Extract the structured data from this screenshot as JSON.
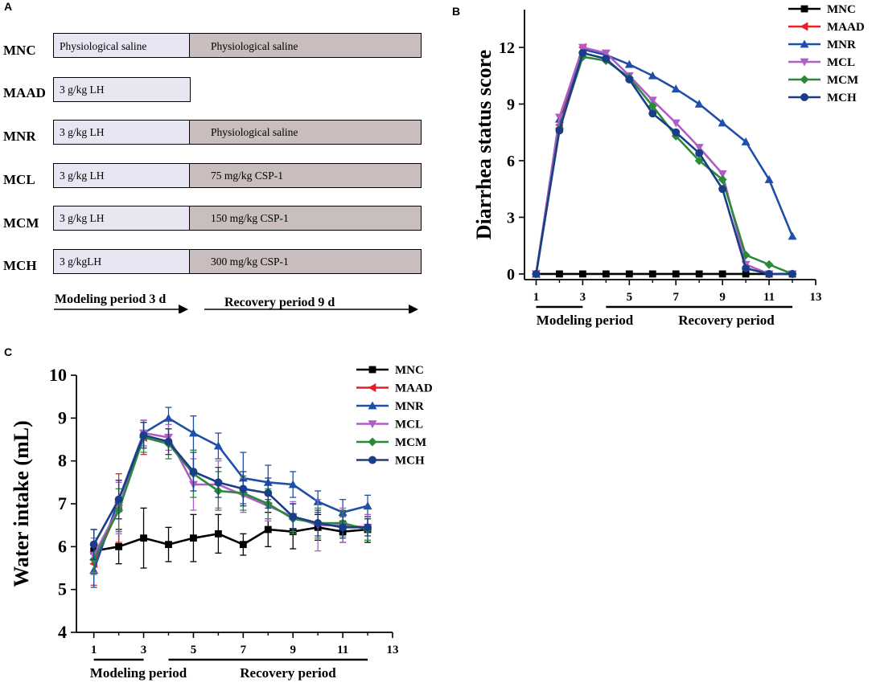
{
  "panel_a": {
    "letter": "A",
    "groups": [
      {
        "name": "MNC",
        "modeling": "Physiological saline",
        "recovery": "Physiological saline"
      },
      {
        "name": "MAAD",
        "modeling": "3 g/kg LH",
        "recovery": ""
      },
      {
        "name": "MNR",
        "modeling": "3 g/kg LH",
        "recovery": "Physiological saline"
      },
      {
        "name": "MCL",
        "modeling": "3 g/kg LH",
        "recovery": "75 mg/kg CSP-1"
      },
      {
        "name": "MCM",
        "modeling": "3 g/kg LH",
        "recovery": "150 mg/kg CSP-1"
      },
      {
        "name": "MCH",
        "modeling": "3 g/kgLH",
        "recovery": "300 mg/kg CSP-1"
      }
    ],
    "modeling_period_label": "Modeling period 3 d",
    "recovery_period_label": "Recovery period 9 d"
  },
  "chart_data": [
    {
      "panel": "B",
      "type": "line",
      "title": "",
      "xlabel": "",
      "ylabel": "Diarrhea status score",
      "xlim": [
        0.5,
        13
      ],
      "ylim": [
        -0.3,
        14
      ],
      "x_ticks": [
        1,
        3,
        5,
        7,
        9,
        11,
        13
      ],
      "y_ticks": [
        0,
        3,
        6,
        9,
        12
      ],
      "period_labels": [
        "Modeling period",
        "Recovery period"
      ],
      "legend_position": "top-right",
      "x": [
        1,
        2,
        3,
        4,
        5,
        6,
        7,
        8,
        9,
        10,
        11,
        12
      ],
      "series": [
        {
          "name": "MNC",
          "color": "#000000",
          "marker": "square",
          "values": [
            0,
            0,
            0,
            0,
            0,
            0,
            0,
            0,
            0,
            0,
            0,
            0
          ]
        },
        {
          "name": "MAAD",
          "color": "#ee1c24",
          "marker": "triangle-left",
          "values": [
            0,
            7.9,
            12.0,
            null,
            null,
            null,
            null,
            null,
            null,
            null,
            null,
            null
          ]
        },
        {
          "name": "MNR",
          "color": "#1f4fa8",
          "marker": "triangle-up",
          "values": [
            0,
            8.2,
            11.9,
            11.6,
            11.1,
            10.5,
            9.8,
            9.0,
            8.0,
            7.0,
            5.0,
            2.0
          ]
        },
        {
          "name": "MCL",
          "color": "#b05ec7",
          "marker": "triangle-down",
          "values": [
            0,
            8.3,
            12.0,
            11.7,
            10.5,
            9.2,
            8.0,
            6.7,
            5.3,
            0.5,
            0,
            0
          ]
        },
        {
          "name": "MCM",
          "color": "#2a8a3a",
          "marker": "diamond",
          "values": [
            0,
            7.7,
            11.5,
            11.3,
            10.4,
            8.9,
            7.3,
            6.0,
            5.0,
            1.0,
            0.5,
            0
          ]
        },
        {
          "name": "MCH",
          "color": "#1a3d8a",
          "marker": "circle",
          "values": [
            0,
            7.6,
            11.7,
            11.4,
            10.3,
            8.5,
            7.5,
            6.4,
            4.5,
            0.3,
            0,
            0
          ]
        }
      ]
    },
    {
      "panel": "C",
      "type": "line",
      "title": "",
      "xlabel": "",
      "ylabel": "Water intake (mL)",
      "xlim": [
        0.3,
        13
      ],
      "ylim": [
        4,
        10
      ],
      "x_ticks": [
        1,
        3,
        5,
        7,
        9,
        11,
        13
      ],
      "y_ticks": [
        4,
        5,
        6,
        7,
        8,
        9,
        10
      ],
      "period_labels": [
        "Modeling period",
        "Recovery period"
      ],
      "legend_position": "top-right",
      "x": [
        1,
        2,
        3,
        4,
        5,
        6,
        7,
        8,
        9,
        10,
        11,
        12
      ],
      "series": [
        {
          "name": "MNC",
          "color": "#000000",
          "marker": "square",
          "values": [
            5.9,
            6.0,
            6.2,
            6.05,
            6.2,
            6.3,
            6.05,
            6.4,
            6.35,
            6.45,
            6.35,
            6.4
          ],
          "errors": [
            0.5,
            0.4,
            0.7,
            0.4,
            0.55,
            0.45,
            0.25,
            0.4,
            0.4,
            0.3,
            0.25,
            0.3
          ]
        },
        {
          "name": "MAAD",
          "color": "#ee1c24",
          "marker": "triangle-left",
          "values": [
            5.6,
            6.9,
            8.55,
            null,
            null,
            null,
            null,
            null,
            null,
            null,
            null,
            null
          ],
          "errors": [
            0.5,
            0.8,
            0.4,
            null,
            null,
            null,
            null,
            null,
            null,
            null,
            null,
            null
          ]
        },
        {
          "name": "MNR",
          "color": "#1f4fa8",
          "marker": "triangle-up",
          "values": [
            5.45,
            7.1,
            8.65,
            9.0,
            8.65,
            8.35,
            7.6,
            7.5,
            7.45,
            7.05,
            6.8,
            6.95
          ],
          "errors": [
            0.4,
            0.45,
            0.3,
            0.25,
            0.4,
            0.3,
            0.6,
            0.4,
            0.3,
            0.25,
            0.3,
            0.25
          ]
        },
        {
          "name": "MCL",
          "color": "#b05ec7",
          "marker": "triangle-down",
          "values": [
            5.8,
            6.9,
            8.65,
            8.55,
            7.45,
            7.45,
            7.2,
            6.95,
            6.7,
            6.5,
            6.5,
            6.45
          ],
          "errors": [
            0.4,
            0.6,
            0.3,
            0.3,
            0.6,
            0.55,
            0.4,
            0.35,
            0.35,
            0.6,
            0.4,
            0.3
          ]
        },
        {
          "name": "MCM",
          "color": "#2a8a3a",
          "marker": "diamond",
          "values": [
            5.7,
            6.85,
            8.55,
            8.4,
            7.7,
            7.3,
            7.25,
            7.0,
            6.65,
            6.55,
            6.55,
            6.4
          ],
          "errors": [
            0.35,
            0.5,
            0.35,
            0.35,
            0.55,
            0.45,
            0.4,
            0.35,
            0.35,
            0.35,
            0.3,
            0.25
          ]
        },
        {
          "name": "MCH",
          "color": "#1a3d8a",
          "marker": "circle",
          "values": [
            6.05,
            7.1,
            8.6,
            8.45,
            7.75,
            7.5,
            7.35,
            7.25,
            6.7,
            6.55,
            6.45,
            6.45
          ],
          "errors": [
            0.35,
            0.45,
            0.3,
            0.3,
            0.45,
            0.35,
            0.4,
            0.35,
            0.3,
            0.3,
            0.25,
            0.2
          ]
        }
      ]
    }
  ]
}
